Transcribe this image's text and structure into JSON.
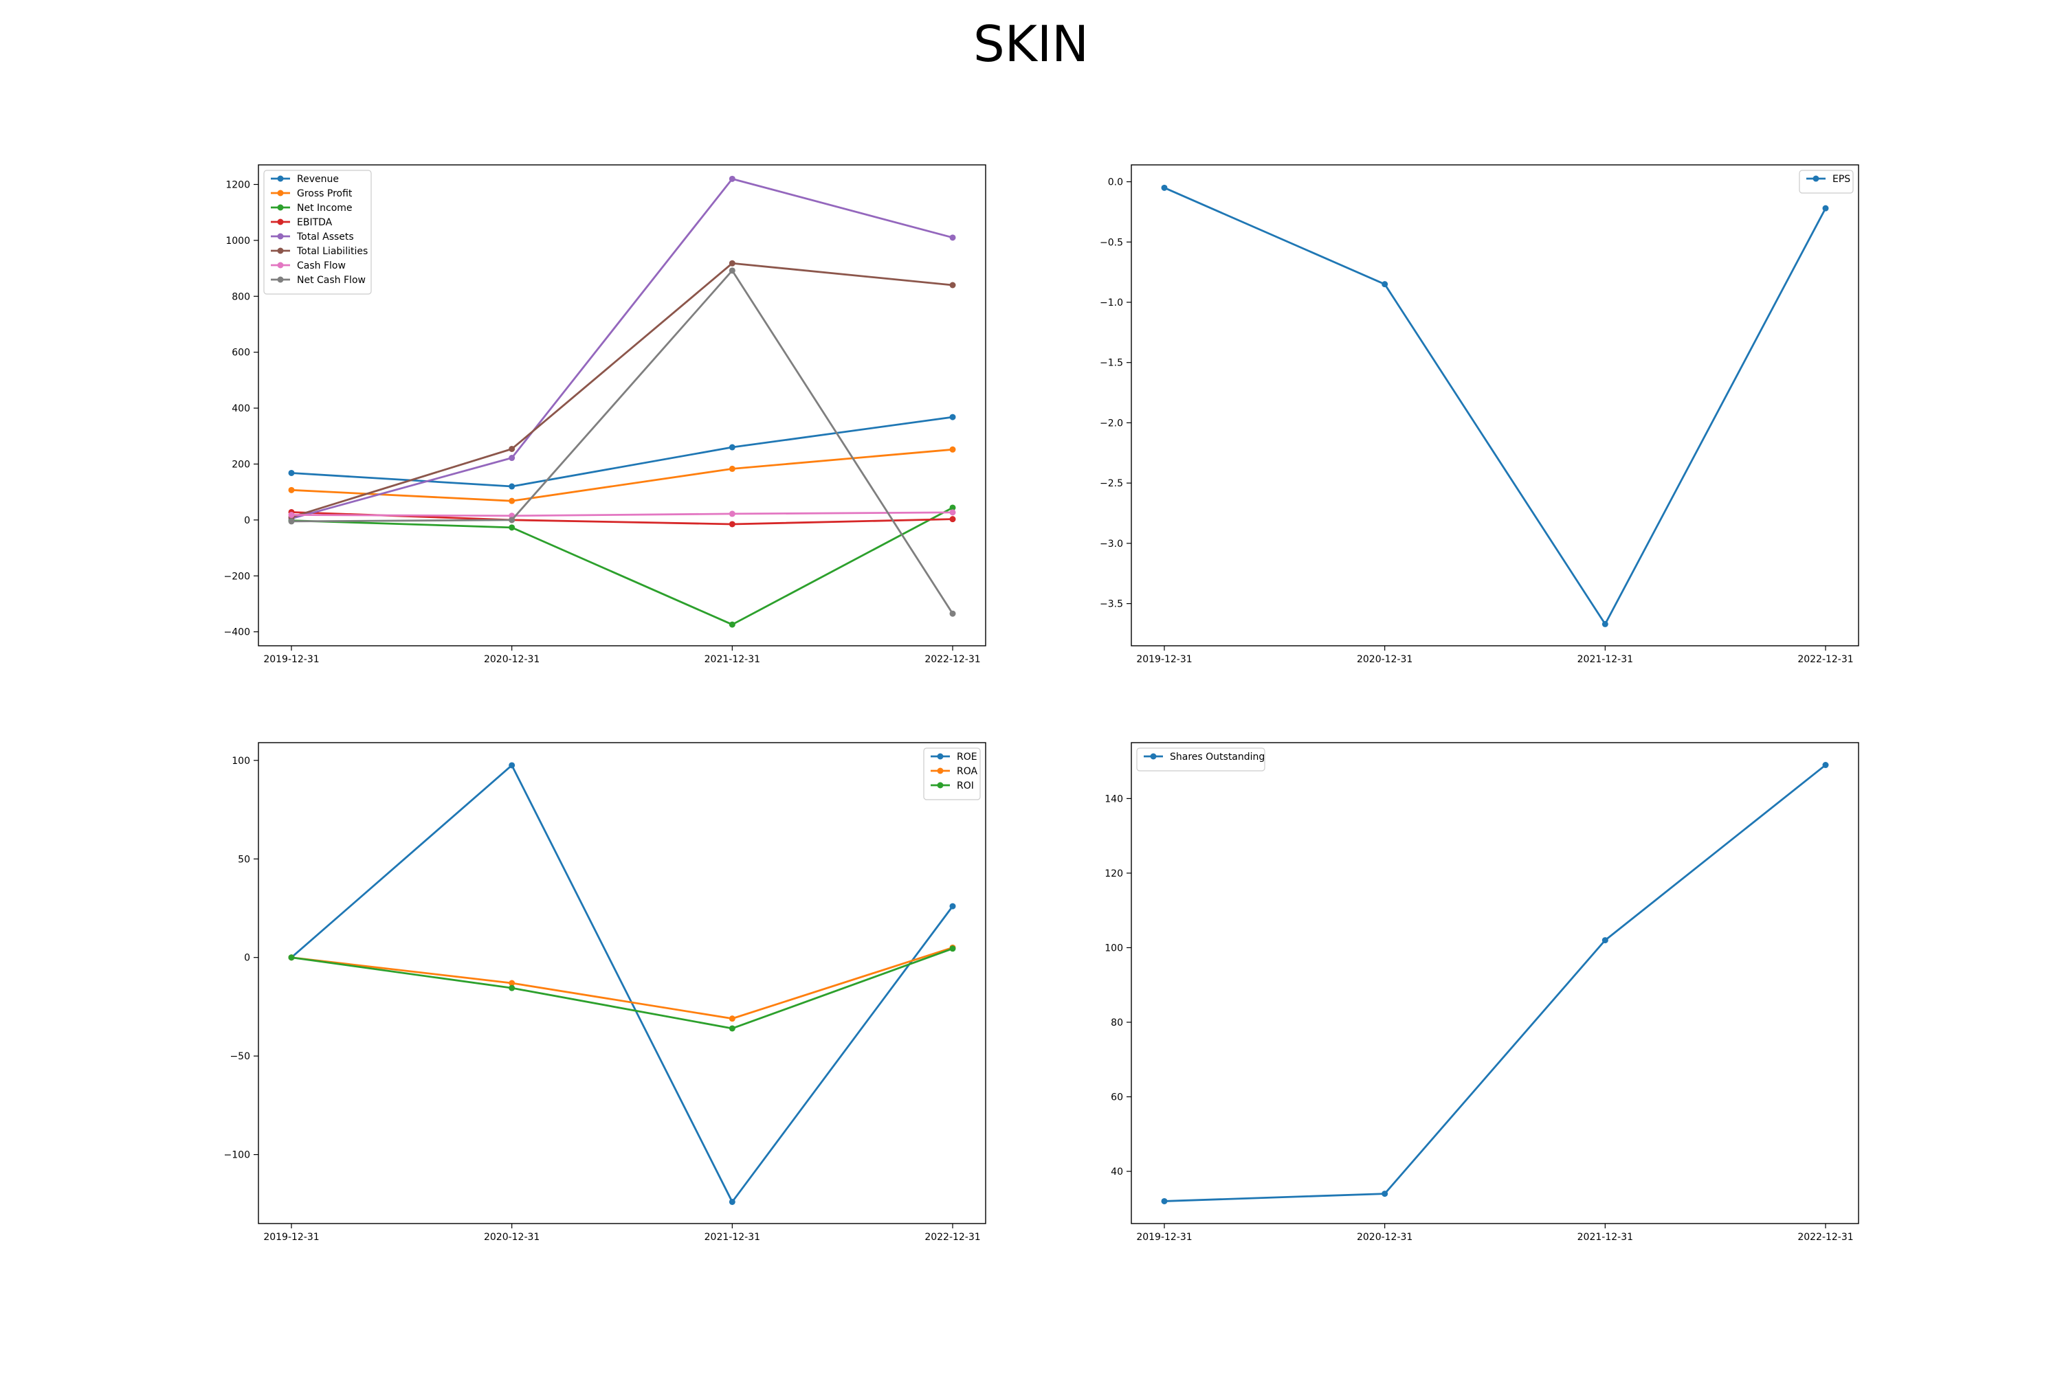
{
  "figure": {
    "title": "SKIN"
  },
  "chart_data": [
    {
      "type": "line",
      "title": "",
      "xlabel": "",
      "ylabel": "",
      "categories": [
        "2019-12-31",
        "2020-12-31",
        "2021-12-31",
        "2022-12-31"
      ],
      "ylim": [
        -450,
        1270
      ],
      "yticks": [
        -400,
        -200,
        0,
        200,
        400,
        600,
        800,
        1000,
        1200
      ],
      "ytick_labels": [
        "−400",
        "−200",
        "0",
        "200",
        "400",
        "600",
        "800",
        "1000",
        "1200"
      ],
      "legend": "upper-left",
      "grid": false,
      "series": [
        {
          "name": "Revenue",
          "color": "#1f77b4",
          "values": [
            168,
            120,
            260,
            368
          ]
        },
        {
          "name": "Gross Profit",
          "color": "#ff7f0e",
          "values": [
            107,
            68,
            183,
            252
          ]
        },
        {
          "name": "Net Income",
          "color": "#2ca02c",
          "values": [
            -2,
            -27,
            -374,
            44
          ]
        },
        {
          "name": "EBITDA",
          "color": "#d62728",
          "values": [
            28,
            0,
            -15,
            3
          ]
        },
        {
          "name": "Total Assets",
          "color": "#9467bd",
          "values": [
            5,
            222,
            1220,
            1010
          ]
        },
        {
          "name": "Total Liabilities",
          "color": "#8c564b",
          "values": [
            10,
            254,
            918,
            840
          ]
        },
        {
          "name": "Cash Flow",
          "color": "#e377c2",
          "values": [
            18,
            15,
            22,
            27
          ]
        },
        {
          "name": "Net Cash Flow",
          "color": "#7f7f7f",
          "values": [
            -5,
            0,
            892,
            -335
          ]
        }
      ]
    },
    {
      "type": "line",
      "title": "",
      "xlabel": "",
      "ylabel": "",
      "categories": [
        "2019-12-31",
        "2020-12-31",
        "2021-12-31",
        "2022-12-31"
      ],
      "ylim": [
        -3.85,
        0.14
      ],
      "yticks": [
        -3.5,
        -3.0,
        -2.5,
        -2.0,
        -1.5,
        -1.0,
        -0.5,
        0.0
      ],
      "ytick_labels": [
        "−3.5",
        "−3.0",
        "−2.5",
        "−2.0",
        "−1.5",
        "−1.0",
        "−0.5",
        "0.0"
      ],
      "legend": "upper-right",
      "grid": false,
      "series": [
        {
          "name": "EPS",
          "color": "#1f77b4",
          "values": [
            -0.05,
            -0.85,
            -3.67,
            -0.22
          ]
        }
      ]
    },
    {
      "type": "line",
      "title": "",
      "xlabel": "",
      "ylabel": "",
      "categories": [
        "2019-12-31",
        "2020-12-31",
        "2021-12-31",
        "2022-12-31"
      ],
      "ylim": [
        -135,
        109
      ],
      "yticks": [
        -100,
        -50,
        0,
        50,
        100
      ],
      "ytick_labels": [
        "−100",
        "−50",
        "0",
        "50",
        "100"
      ],
      "legend": "upper-right",
      "grid": false,
      "series": [
        {
          "name": "ROE",
          "color": "#1f77b4",
          "values": [
            0,
            97.5,
            -124,
            26
          ]
        },
        {
          "name": "ROA",
          "color": "#ff7f0e",
          "values": [
            0,
            -13,
            -31,
            5
          ]
        },
        {
          "name": "ROI",
          "color": "#2ca02c",
          "values": [
            0,
            -15.5,
            -36,
            4.5
          ]
        }
      ]
    },
    {
      "type": "line",
      "title": "",
      "xlabel": "",
      "ylabel": "",
      "categories": [
        "2019-12-31",
        "2020-12-31",
        "2021-12-31",
        "2022-12-31"
      ],
      "ylim": [
        26,
        155
      ],
      "yticks": [
        40,
        60,
        80,
        100,
        120,
        140
      ],
      "ytick_labels": [
        "40",
        "60",
        "80",
        "100",
        "120",
        "140"
      ],
      "legend": "upper-left",
      "grid": false,
      "series": [
        {
          "name": "Shares Outstanding",
          "color": "#1f77b4",
          "values": [
            32,
            34,
            102,
            149
          ]
        }
      ]
    }
  ]
}
